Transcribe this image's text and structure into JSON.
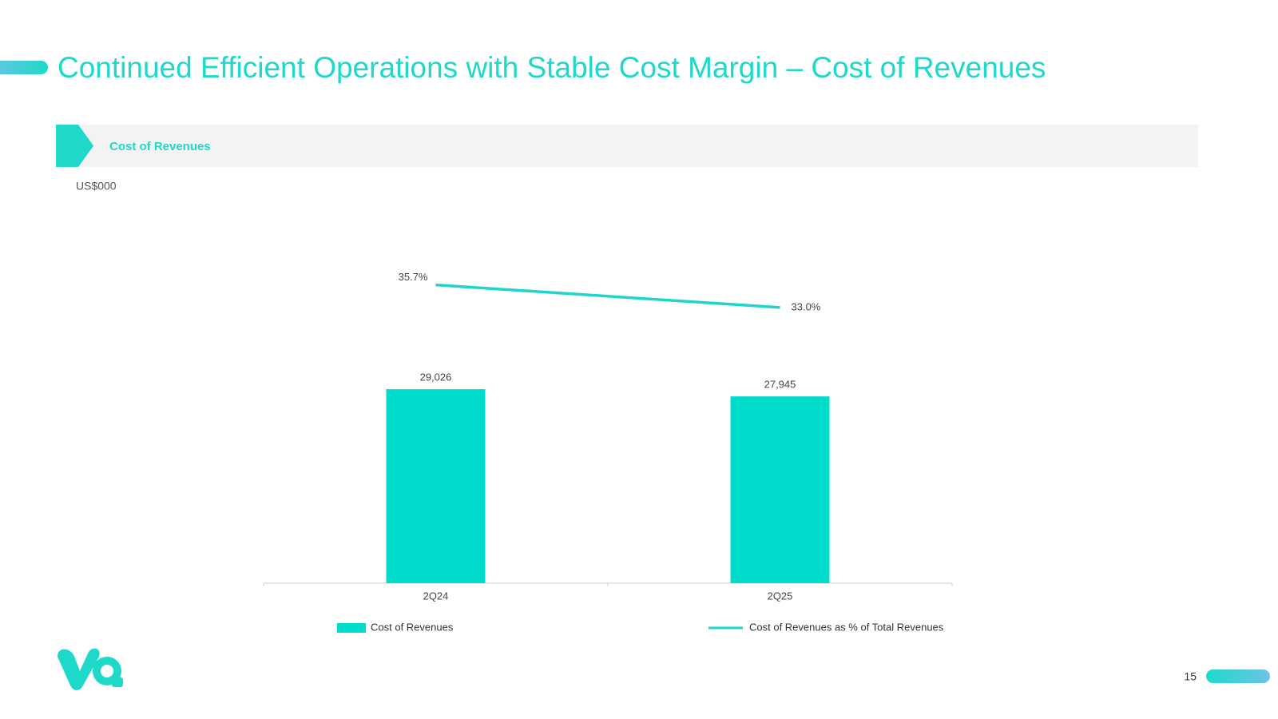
{
  "title": "Continued Efficient Operations with Stable Cost Margin – Cost of Revenues",
  "section": "Cost of Revenues",
  "unit": "US$000",
  "page_number": "15",
  "chart_data": {
    "type": "bar",
    "categories": [
      "2Q24",
      "2Q25"
    ],
    "series": [
      {
        "name": "Cost of Revenues",
        "type": "bar",
        "color": "#00dccb",
        "values": [
          29026,
          27945
        ],
        "value_labels": [
          "29,026",
          "27,945"
        ]
      },
      {
        "name": "Cost of Revenues as % of Total Revenues",
        "type": "line",
        "axis": "y2",
        "color": "#1ed6cc",
        "values": [
          35.7,
          33.0
        ],
        "value_labels": [
          "35.7%",
          "33.0%"
        ]
      }
    ],
    "ylim": [
      0,
      60000
    ],
    "y2lim": [
      0,
      48
    ]
  }
}
